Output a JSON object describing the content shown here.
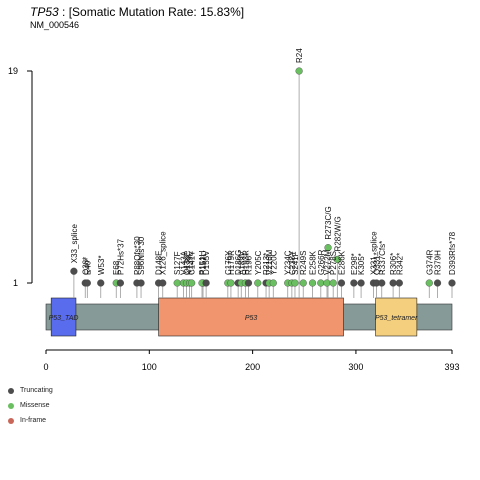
{
  "header": {
    "gene": "TP53",
    "rate_label": " : [Somatic Mutation Rate: 15.83%]",
    "transcript": "NM_000546"
  },
  "colors": {
    "truncating": "#4d4d4d",
    "missense": "#6abf60",
    "inframe": "#c9665a",
    "backbone": "#869a98",
    "p53_tad": "#5a6cee",
    "p53_core": "#f0956e",
    "p53_tetramer": "#f4cf7e"
  },
  "chart_data": {
    "type": "lollipop",
    "protein_length": 393,
    "xlim": [
      0,
      393
    ],
    "x_ticks": [
      0,
      100,
      200,
      300,
      393
    ],
    "y_ticks": [
      1,
      19
    ],
    "ylim": [
      0,
      19
    ],
    "domains": [
      {
        "name": "P53_TAD",
        "start": 5,
        "end": 29,
        "color": "#5a6cee"
      },
      {
        "name": "P53",
        "start": 109,
        "end": 288,
        "color": "#f0956e"
      },
      {
        "name": "P53_tetramer",
        "start": 319,
        "end": 359,
        "color": "#f4cf7e"
      }
    ],
    "legend": [
      {
        "label": "Truncating",
        "color": "#4d4d4d"
      },
      {
        "label": "Missense",
        "color": "#6abf60"
      },
      {
        "label": "In-frame",
        "color": "#c9665a"
      }
    ],
    "mutations": [
      {
        "pos": 245,
        "count": 19,
        "type": "missense",
        "label": "R24"
      },
      {
        "pos": 273,
        "count": 4,
        "type": "missense",
        "label": "R273C/G"
      },
      {
        "pos": 282,
        "count": 3,
        "type": "missense",
        "label": "R282W/G"
      },
      {
        "pos": 27,
        "count": 2,
        "type": "truncating",
        "label": "X33_splice"
      },
      {
        "pos": 152,
        "count": 1,
        "type": "missense",
        "label": "P152L"
      },
      {
        "pos": 38,
        "count": 1,
        "type": "truncating",
        "label": "Q38*"
      },
      {
        "pos": 40,
        "count": 1,
        "type": "truncating",
        "label": "E40*"
      },
      {
        "pos": 53,
        "count": 1,
        "type": "truncating",
        "label": "W53*"
      },
      {
        "pos": 68,
        "count": 1,
        "type": "missense",
        "label": "E68"
      },
      {
        "pos": 72,
        "count": 1,
        "type": "truncating",
        "label": "P72Hs*37"
      },
      {
        "pos": 88,
        "count": 1,
        "type": "truncating",
        "label": "P88Qfs*30"
      },
      {
        "pos": 92,
        "count": 1,
        "type": "truncating",
        "label": "S96Nfs*30"
      },
      {
        "pos": 109,
        "count": 1,
        "type": "truncating",
        "label": "D148E"
      },
      {
        "pos": 113,
        "count": 1,
        "type": "truncating",
        "label": "X126_splice"
      },
      {
        "pos": 127,
        "count": 1,
        "type": "missense",
        "label": "S127F"
      },
      {
        "pos": 133,
        "count": 1,
        "type": "missense",
        "label": "V143A"
      },
      {
        "pos": 136,
        "count": 1,
        "type": "missense",
        "label": "Q136*"
      },
      {
        "pos": 139,
        "count": 1,
        "type": "missense",
        "label": "K139E"
      },
      {
        "pos": 141,
        "count": 1,
        "type": "missense",
        "label": "C141Y"
      },
      {
        "pos": 151,
        "count": 1,
        "type": "missense",
        "label": "P151H"
      },
      {
        "pos": 155,
        "count": 1,
        "type": "truncating",
        "label": "D155V"
      },
      {
        "pos": 176,
        "count": 1,
        "type": "missense",
        "label": "C176Y"
      },
      {
        "pos": 179,
        "count": 1,
        "type": "missense",
        "label": "H179R"
      },
      {
        "pos": 186,
        "count": 1,
        "type": "truncating",
        "label": "D186G"
      },
      {
        "pos": 189,
        "count": 1,
        "type": "missense",
        "label": "A189V"
      },
      {
        "pos": 193,
        "count": 1,
        "type": "missense",
        "label": "H193R"
      },
      {
        "pos": 196,
        "count": 1,
        "type": "truncating",
        "label": "R196*"
      },
      {
        "pos": 205,
        "count": 1,
        "type": "missense",
        "label": "Y205C"
      },
      {
        "pos": 213,
        "count": 1,
        "type": "truncating",
        "label": "R213*"
      },
      {
        "pos": 216,
        "count": 1,
        "type": "missense",
        "label": "V216M"
      },
      {
        "pos": 220,
        "count": 1,
        "type": "missense",
        "label": "Y220C"
      },
      {
        "pos": 234,
        "count": 1,
        "type": "missense",
        "label": "Y234C"
      },
      {
        "pos": 238,
        "count": 1,
        "type": "missense",
        "label": "C238Y"
      },
      {
        "pos": 241,
        "count": 1,
        "type": "missense",
        "label": "S241F"
      },
      {
        "pos": 249,
        "count": 1,
        "type": "missense",
        "label": "R249S"
      },
      {
        "pos": 258,
        "count": 1,
        "type": "missense",
        "label": "E258K"
      },
      {
        "pos": 266,
        "count": 1,
        "type": "missense",
        "label": "G266R"
      },
      {
        "pos": 272,
        "count": 1,
        "type": "missense",
        "label": "V272M"
      },
      {
        "pos": 278,
        "count": 1,
        "type": "missense",
        "label": "P278S"
      },
      {
        "pos": 286,
        "count": 1,
        "type": "truncating",
        "label": "E286K"
      },
      {
        "pos": 298,
        "count": 1,
        "type": "truncating",
        "label": "E298*"
      },
      {
        "pos": 305,
        "count": 1,
        "type": "truncating",
        "label": "K305*"
      },
      {
        "pos": 317,
        "count": 1,
        "type": "truncating",
        "label": "X331_splice"
      },
      {
        "pos": 320,
        "count": 1,
        "type": "truncating",
        "label": "Q331*"
      },
      {
        "pos": 325,
        "count": 1,
        "type": "truncating",
        "label": "R337Cfs*"
      },
      {
        "pos": 336,
        "count": 1,
        "type": "truncating",
        "label": "R306*"
      },
      {
        "pos": 342,
        "count": 1,
        "type": "truncating",
        "label": "R342*"
      },
      {
        "pos": 371,
        "count": 1,
        "type": "missense",
        "label": "G374R"
      },
      {
        "pos": 379,
        "count": 1,
        "type": "truncating",
        "label": "R379H"
      },
      {
        "pos": 393,
        "count": 1,
        "type": "truncating",
        "label": "D393Rfs*78"
      }
    ]
  }
}
